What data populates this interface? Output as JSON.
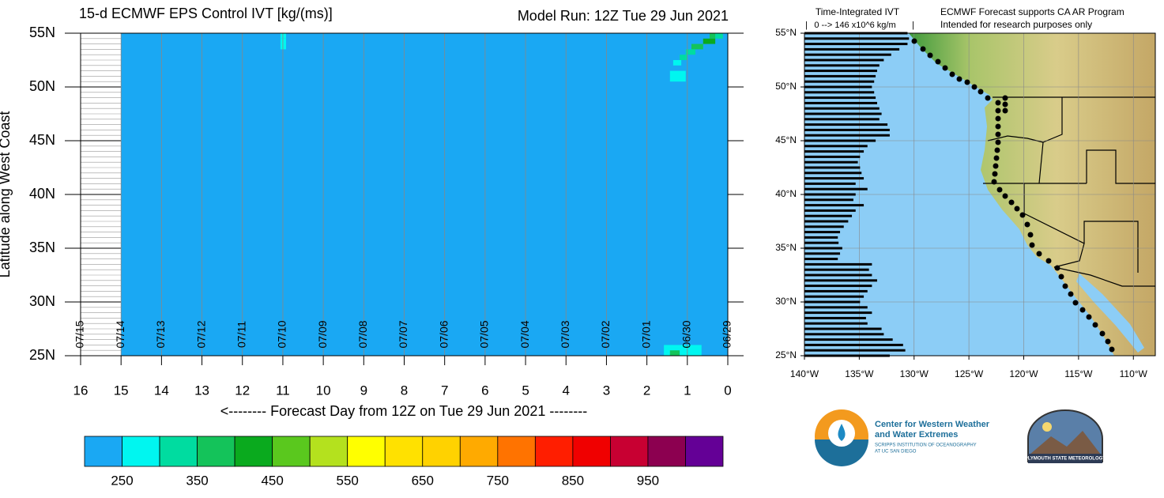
{
  "chart_data": [
    {
      "type": "heatmap",
      "title": "15-d ECMWF EPS Control IVT [kg/(ms)]",
      "subtitle": "Model Run: 12Z Tue 29 Jun 2021",
      "xlabel": "<-------- Forecast Day from 12Z on Tue 29 Jun 2021 --------",
      "ylabel": "Latitude along West Coast",
      "xlim": [
        16,
        0
      ],
      "xticks": [
        16,
        15,
        14,
        13,
        12,
        11,
        10,
        9,
        8,
        7,
        6,
        5,
        4,
        3,
        2,
        1,
        0
      ],
      "date_labels": [
        "07/15",
        "07/14",
        "07/13",
        "07/12",
        "07/11",
        "07/10",
        "07/09",
        "07/08",
        "07/07",
        "07/06",
        "07/05",
        "07/04",
        "07/03",
        "07/02",
        "07/01",
        "06/30",
        "06/29"
      ],
      "ylim": [
        25,
        55
      ],
      "yticks": [
        {
          "value": 25,
          "label": "25N"
        },
        {
          "value": 30,
          "label": "30N"
        },
        {
          "value": 35,
          "label": "35N"
        },
        {
          "value": 40,
          "label": "40N"
        },
        {
          "value": 45,
          "label": "45N"
        },
        {
          "value": 50,
          "label": "50N"
        },
        {
          "value": 55,
          "label": "55N"
        }
      ],
      "minor_grid_step": 0.5,
      "cells": [
        {
          "x": [
            15,
            0
          ],
          "y": [
            25,
            55
          ],
          "value": 200
        },
        {
          "x": [
            11.06,
            10.92
          ],
          "y": [
            54.5,
            55
          ],
          "value": 270
        },
        {
          "x": [
            11.06,
            10.92
          ],
          "y": [
            53.5,
            54.5
          ],
          "value": 260
        },
        {
          "x": [
            0.31,
            0.12
          ],
          "y": [
            54.5,
            55
          ],
          "value": 330
        },
        {
          "x": [
            0.45,
            0.31
          ],
          "y": [
            54.5,
            55
          ],
          "value": 380
        },
        {
          "x": [
            0.61,
            0.31
          ],
          "y": [
            54,
            54.5
          ],
          "value": 420
        },
        {
          "x": [
            0.9,
            0.61
          ],
          "y": [
            53.5,
            54
          ],
          "value": 380
        },
        {
          "x": [
            1.04,
            0.8
          ],
          "y": [
            53,
            53.5
          ],
          "value": 330
        },
        {
          "x": [
            1.19,
            1.0
          ],
          "y": [
            52.5,
            53
          ],
          "value": 300
        },
        {
          "x": [
            1.35,
            1.15
          ],
          "y": [
            52,
            52.5
          ],
          "value": 280
        },
        {
          "x": [
            1.43,
            1.04
          ],
          "y": [
            50.5,
            51.5
          ],
          "value": 270
        },
        {
          "x": [
            1.58,
            0.65
          ],
          "y": [
            25,
            26
          ],
          "value": 270
        },
        {
          "x": [
            1.43,
            1.19
          ],
          "y": [
            25,
            25.5
          ],
          "value": 380
        }
      ],
      "colorbar": {
        "levels": [
          250,
          300,
          350,
          400,
          450,
          500,
          550,
          600,
          650,
          700,
          750,
          800,
          850,
          900,
          950,
          1000
        ],
        "colors": [
          "#1aa8f3",
          "#00f6f0",
          "#00dca0",
          "#14c35a",
          "#0aaa1e",
          "#5ac81e",
          "#b4e11e",
          "#ffff00",
          "#ffe100",
          "#ffd200",
          "#ffaa00",
          "#ff7300",
          "#ff1e00",
          "#f00000",
          "#c80032",
          "#8c0050",
          "#640096"
        ],
        "ticks": [
          250,
          350,
          450,
          550,
          650,
          750,
          850,
          950
        ]
      }
    },
    {
      "type": "map-bars",
      "title": "Time-Integrated IVT",
      "scale_label": "0 --> 146 x10^6 kg/m",
      "notes": [
        "ECMWF Forecast supports CA AR Program",
        "Intended for research purposes only"
      ],
      "xlim": [
        -140,
        -108
      ],
      "xticks": [
        {
          "value": -140,
          "label": "140°W"
        },
        {
          "value": -135,
          "label": "135°W"
        },
        {
          "value": -130,
          "label": "130°W"
        },
        {
          "value": -125,
          "label": "125°W"
        },
        {
          "value": -120,
          "label": "120°W"
        },
        {
          "value": -115,
          "label": "115°W"
        },
        {
          "value": -110,
          "label": "110°W"
        }
      ],
      "ylim": [
        25,
        55
      ],
      "yticks": [
        {
          "value": 25,
          "label": "25°N"
        },
        {
          "value": 30,
          "label": "30°N"
        },
        {
          "value": 35,
          "label": "35°N"
        },
        {
          "value": 40,
          "label": "40°N"
        },
        {
          "value": 45,
          "label": "45°N"
        },
        {
          "value": 50,
          "label": "50°N"
        },
        {
          "value": 55,
          "label": "55°N"
        }
      ],
      "bar_scale": [
        0,
        146
      ],
      "bar_color": "#000000",
      "latitudes": [
        55,
        54.5,
        54,
        53.5,
        53,
        52.5,
        52,
        51.5,
        51,
        50.5,
        50,
        49.5,
        49,
        48.5,
        48,
        47.5,
        47,
        46.5,
        46,
        45.5,
        45,
        44.5,
        44,
        43.5,
        43,
        42.5,
        42,
        41.5,
        41,
        40.5,
        40,
        39.5,
        39,
        38.5,
        38,
        37.5,
        37,
        36.5,
        36,
        35.5,
        35,
        34.5,
        34,
        33.5,
        33,
        32.5,
        32,
        31.5,
        31,
        30.5,
        30,
        29.5,
        29,
        28.5,
        28,
        27.5,
        27,
        26.5,
        26,
        25.5,
        25
      ],
      "values": [
        139,
        141,
        139,
        128,
        117,
        107,
        101,
        98,
        96,
        94,
        91,
        94,
        96,
        98,
        101,
        104,
        101,
        112,
        115,
        115,
        96,
        85,
        80,
        75,
        72,
        75,
        77,
        80,
        69,
        85,
        69,
        66,
        80,
        69,
        64,
        59,
        53,
        48,
        45,
        46,
        51,
        48,
        45,
        91,
        87,
        91,
        98,
        91,
        85,
        80,
        75,
        85,
        91,
        83,
        85,
        104,
        107,
        119,
        133,
        136,
        115
      ]
    }
  ],
  "logos": {
    "cw3e": [
      "Center for Western Weather",
      "and Water Extremes"
    ],
    "cw3e_sub": [
      "SCRIPPS INSTITUTION OF OCEANOGRAPHY",
      "AT UC SAN DIEGO"
    ],
    "psu": "PLYMOUTH STATE METEOROLOGY"
  }
}
